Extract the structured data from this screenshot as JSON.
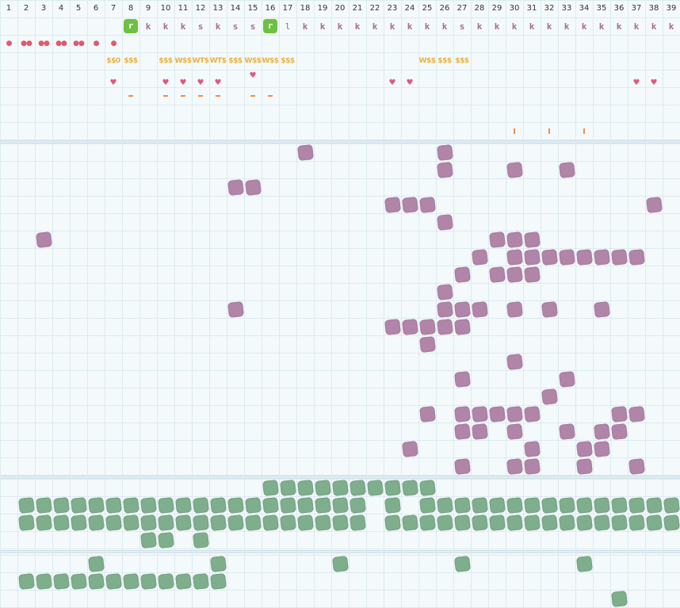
{
  "columns": [
    "1",
    "2",
    "3",
    "4",
    "5",
    "6",
    "7",
    "8",
    "9",
    "10",
    "11",
    "12",
    "13",
    "14",
    "15",
    "16",
    "17",
    "18",
    "19",
    "20",
    "21",
    "22",
    "23",
    "24",
    "25",
    "26",
    "27",
    "28",
    "29",
    "30",
    "31",
    "32",
    "33",
    "34",
    "35",
    "36",
    "37",
    "38",
    "39"
  ],
  "letters_row": [
    {
      "col": 8,
      "text": "r",
      "badge": true
    },
    {
      "col": 9,
      "text": "k"
    },
    {
      "col": 10,
      "text": "k"
    },
    {
      "col": 11,
      "text": "k"
    },
    {
      "col": 12,
      "text": "s"
    },
    {
      "col": 13,
      "text": "k"
    },
    {
      "col": 14,
      "text": "s"
    },
    {
      "col": 15,
      "text": "s"
    },
    {
      "col": 16,
      "text": "r",
      "badge": true
    },
    {
      "col": 17,
      "text": "l",
      "dim": true
    },
    {
      "col": 18,
      "text": "k"
    },
    {
      "col": 19,
      "text": "k"
    },
    {
      "col": 20,
      "text": "k"
    },
    {
      "col": 21,
      "text": "k"
    },
    {
      "col": 22,
      "text": "k"
    },
    {
      "col": 23,
      "text": "k"
    },
    {
      "col": 24,
      "text": "k"
    },
    {
      "col": 25,
      "text": "k"
    },
    {
      "col": 26,
      "text": "k"
    },
    {
      "col": 27,
      "text": "s"
    },
    {
      "col": 28,
      "text": "k"
    },
    {
      "col": 29,
      "text": "k"
    },
    {
      "col": 30,
      "text": "k"
    },
    {
      "col": 31,
      "text": "k"
    },
    {
      "col": 32,
      "text": "k"
    },
    {
      "col": 33,
      "text": "k"
    },
    {
      "col": 34,
      "text": "k"
    },
    {
      "col": 35,
      "text": "k"
    },
    {
      "col": 36,
      "text": "k"
    },
    {
      "col": 37,
      "text": "k"
    },
    {
      "col": 38,
      "text": "k"
    },
    {
      "col": 39,
      "text": "k"
    }
  ],
  "drops_row": [
    {
      "col": 1,
      "text": "●"
    },
    {
      "col": 2,
      "text": "●●"
    },
    {
      "col": 3,
      "text": "●●"
    },
    {
      "col": 4,
      "text": "●●"
    },
    {
      "col": 5,
      "text": "●●"
    },
    {
      "col": 6,
      "text": "●"
    },
    {
      "col": 7,
      "text": "●"
    }
  ],
  "money_row": [
    {
      "col": 7,
      "text": "$$0"
    },
    {
      "col": 8,
      "text": "$$$"
    },
    {
      "col": 10,
      "text": "$$$"
    },
    {
      "col": 11,
      "text": "W$$"
    },
    {
      "col": 12,
      "text": "WT$"
    },
    {
      "col": 13,
      "text": "WT$"
    },
    {
      "col": 14,
      "text": "$$$"
    },
    {
      "col": 15,
      "text": "W$$"
    },
    {
      "col": 16,
      "text": "W$$"
    },
    {
      "col": 17,
      "text": "$$$"
    },
    {
      "col": 25,
      "text": "W$$"
    },
    {
      "col": 26,
      "text": "$$$"
    },
    {
      "col": 27,
      "text": "$$$"
    }
  ],
  "hearts_row": [
    {
      "col": 7,
      "text": "♥"
    },
    {
      "col": 10,
      "text": "♥"
    },
    {
      "col": 11,
      "text": "♥"
    },
    {
      "col": 12,
      "text": "♥"
    },
    {
      "col": 13,
      "text": "♥"
    },
    {
      "col": 23,
      "text": "♥"
    },
    {
      "col": 24,
      "text": "♥"
    },
    {
      "col": 37,
      "text": "♥"
    },
    {
      "col": 38,
      "text": "♥"
    }
  ],
  "hearts_raised": [
    {
      "col": 15,
      "text": "♥"
    }
  ],
  "dashes_row": [
    8,
    10,
    11,
    12,
    13,
    15,
    16
  ],
  "ticks_row": [
    30,
    32,
    34
  ],
  "purple_rows": [
    [
      18,
      26
    ],
    [
      26,
      30,
      33
    ],
    [
      14,
      15
    ],
    [
      23,
      24,
      25,
      38
    ],
    [
      26
    ],
    [
      3,
      29,
      30,
      31
    ],
    [
      28,
      30,
      31,
      32,
      33,
      34,
      35,
      36,
      37
    ],
    [
      27,
      29,
      30,
      31
    ],
    [
      26
    ],
    [
      14,
      26,
      27,
      28,
      30,
      32,
      35
    ],
    [
      23,
      24,
      25,
      26,
      27
    ],
    [
      25
    ],
    [
      30
    ],
    [
      27,
      33
    ],
    [
      32
    ],
    [
      25,
      27,
      28,
      29,
      30,
      31,
      36,
      37
    ],
    [
      27,
      28,
      30,
      33,
      35,
      36
    ],
    [
      24,
      31,
      34,
      35
    ],
    [
      27,
      30,
      31,
      34,
      37
    ]
  ],
  "green_rows_a": [
    [
      16,
      17,
      18,
      19,
      20,
      21,
      22,
      23,
      24,
      25
    ],
    [
      2,
      3,
      4,
      5,
      6,
      7,
      8,
      9,
      10,
      11,
      12,
      13,
      14,
      15,
      16,
      17,
      18,
      19,
      20,
      21,
      23,
      25,
      26,
      27,
      28,
      29,
      30,
      31,
      32,
      33,
      34,
      35,
      36,
      37,
      38,
      39
    ],
    [
      2,
      3,
      4,
      5,
      6,
      7,
      8,
      9,
      10,
      11,
      12,
      13,
      14,
      15,
      16,
      17,
      18,
      19,
      20,
      21,
      23,
      24,
      25,
      26,
      27,
      28,
      29,
      30,
      31,
      32,
      33,
      34,
      35,
      36,
      37,
      38,
      39
    ],
    [
      9,
      10,
      12
    ]
  ],
  "green_rows_b": [
    [
      6,
      13,
      20,
      27,
      34
    ],
    [
      2,
      3,
      4,
      5,
      6,
      7,
      8,
      9,
      10,
      11,
      12,
      13
    ],
    [
      36
    ]
  ]
}
